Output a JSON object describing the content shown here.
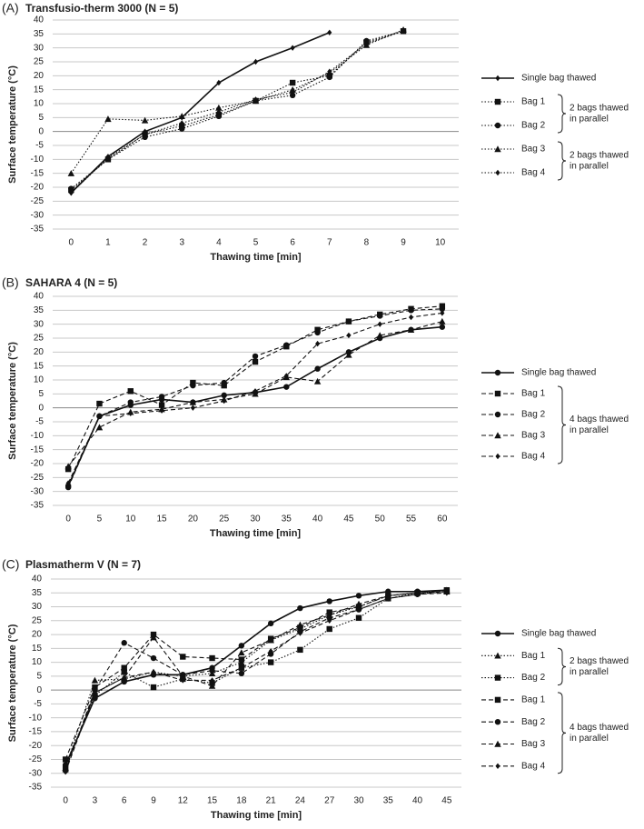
{
  "chart_data": [
    {
      "type": "line",
      "panel_label": "(A)",
      "title": "Transfusio-therm 3000 (N = 5)",
      "x_label": "Thawing time [min]",
      "y_label": "Surface temperature (°C)",
      "categories": [
        "0",
        "1",
        "2",
        "3",
        "4",
        "5",
        "6",
        "7",
        "8",
        "9",
        "10"
      ],
      "ylim": [
        -35,
        40
      ],
      "yticks": [
        -35,
        -30,
        -25,
        -20,
        -15,
        -10,
        -5,
        0,
        5,
        10,
        15,
        20,
        25,
        30,
        35,
        40
      ],
      "grid": true,
      "series": [
        {
          "name": "Single bag thawed",
          "color": "#111111",
          "dash": "solid",
          "marker": "diamond",
          "values": [
            -22,
            -9,
            0,
            5,
            17.5,
            25,
            30,
            35.5,
            null,
            null,
            null
          ]
        },
        {
          "name": "Bag 1",
          "color": "#111111",
          "dash": "dotted",
          "marker": "square",
          "values": [
            -21,
            -10,
            -1,
            2,
            6,
            11,
            17.5,
            20,
            32,
            36,
            null
          ]
        },
        {
          "name": "Bag 2",
          "color": "#111111",
          "dash": "dotted",
          "marker": "circle",
          "values": [
            -20.5,
            -10,
            -2,
            1,
            5.5,
            11,
            13,
            19.5,
            32.5,
            36,
            null
          ]
        },
        {
          "name": "Bag 3",
          "color": "#111111",
          "dash": "dotted",
          "marker": "triangle",
          "values": [
            -15,
            4.5,
            4,
            5.5,
            8.5,
            11,
            15,
            21,
            31,
            36.5,
            null
          ]
        },
        {
          "name": "Bag 4",
          "color": "#111111",
          "dash": "dotted",
          "marker": "diamond",
          "values": [
            -22,
            -9.5,
            -1,
            3,
            7,
            11.5,
            14,
            21.5,
            31.5,
            36,
            null
          ]
        }
      ],
      "legend_groups": [
        {
          "label": [
            "2 bags thawed",
            "in parallel"
          ],
          "series": [
            1,
            2
          ]
        },
        {
          "label": [
            "2 bags thawed",
            "in parallel"
          ],
          "series": [
            3,
            4
          ]
        }
      ]
    },
    {
      "type": "line",
      "panel_label": "(B)",
      "title": "SAHARA 4 (N = 5)",
      "x_label": "Thawing time [min]",
      "y_label": "Surface temperature (°C)",
      "categories": [
        "0",
        "5",
        "10",
        "15",
        "20",
        "25",
        "30",
        "35",
        "40",
        "45",
        "50",
        "55",
        "60"
      ],
      "ylim": [
        -35,
        40
      ],
      "yticks": [
        -35,
        -30,
        -25,
        -20,
        -15,
        -10,
        -5,
        0,
        5,
        10,
        15,
        20,
        25,
        30,
        35,
        40
      ],
      "grid": true,
      "series": [
        {
          "name": "Single bag thawed",
          "color": "#111111",
          "dash": "solid",
          "marker": "circle",
          "values": [
            -28,
            -3,
            1,
            3,
            2,
            4.5,
            5.5,
            7.5,
            14,
            20,
            25,
            28,
            29
          ]
        },
        {
          "name": "Bag 1",
          "color": "#111111",
          "dash": "dashed",
          "marker": "square",
          "values": [
            -22,
            1.5,
            6,
            1,
            9,
            8,
            16.5,
            22,
            28,
            31,
            33.5,
            35.5,
            36.5
          ]
        },
        {
          "name": "Bag 2",
          "color": "#111111",
          "dash": "dashed",
          "marker": "circle",
          "values": [
            -28.5,
            -3,
            2,
            4,
            8,
            9,
            18.5,
            22.5,
            27,
            31,
            33,
            35,
            35.5
          ]
        },
        {
          "name": "Bag 3",
          "color": "#111111",
          "dash": "dashed",
          "marker": "triangle",
          "values": [
            -21,
            -7,
            -1.5,
            -0.5,
            2,
            3,
            5,
            11,
            9.5,
            19,
            26,
            28,
            31
          ]
        },
        {
          "name": "Bag 4",
          "color": "#111111",
          "dash": "dashed",
          "marker": "diamond",
          "values": [
            -27,
            -3,
            -2,
            -1,
            0,
            2.5,
            6,
            11.5,
            23,
            26,
            30,
            32.5,
            34
          ]
        }
      ],
      "legend_groups": [
        {
          "label": [
            "4 bags thawed",
            "in parallel"
          ],
          "series": [
            1,
            2,
            3,
            4
          ]
        }
      ]
    },
    {
      "type": "line",
      "panel_label": "(C)",
      "title": "Plasmatherm V (N = 7)",
      "x_label": "Thawing time [min]",
      "y_label": "Surface temperature (°C)",
      "categories": [
        "0",
        "3",
        "6",
        "9",
        "12",
        "15",
        "18",
        "21",
        "24",
        "27",
        "30",
        "35",
        "40",
        "45"
      ],
      "ylim": [
        -35,
        40
      ],
      "yticks": [
        -35,
        -30,
        -25,
        -20,
        -15,
        -10,
        -5,
        0,
        5,
        10,
        15,
        20,
        25,
        30,
        35,
        40
      ],
      "grid": true,
      "series": [
        {
          "name": "Single bag thawed",
          "color": "#111111",
          "dash": "solid",
          "marker": "circle",
          "values": [
            -27,
            -3,
            3,
            5.5,
            5.5,
            8,
            16,
            24,
            29.5,
            32,
            34,
            35.5,
            35.5,
            36
          ]
        },
        {
          "name": "Bag 1",
          "color": "#111111",
          "dash": "dotted",
          "marker": "triangle",
          "values": [
            -28,
            3.5,
            4,
            6.5,
            5,
            6,
            10,
            18,
            22,
            27,
            30,
            34,
            35,
            36
          ]
        },
        {
          "name": "Bag 2",
          "color": "#111111",
          "dash": "dotted",
          "marker": "square",
          "values": [
            -28,
            -2,
            6.5,
            1,
            4,
            2.5,
            8,
            10,
            14.5,
            22,
            26,
            33,
            35,
            35.5
          ]
        },
        {
          "name": "Bag 1",
          "color": "#111111",
          "dash": "dashed",
          "marker": "square",
          "values": [
            -25,
            1,
            8,
            20,
            12,
            11.5,
            11,
            18.5,
            22.5,
            28,
            30,
            34,
            35,
            36
          ]
        },
        {
          "name": "Bag 2",
          "color": "#111111",
          "dash": "dashed",
          "marker": "circle",
          "values": [
            -29,
            0,
            17,
            11.5,
            5.5,
            7,
            6,
            13,
            21,
            26,
            29,
            33,
            34.5,
            35.5
          ]
        },
        {
          "name": "Bag 3",
          "color": "#111111",
          "dash": "dashed",
          "marker": "triangle",
          "values": [
            -28.5,
            -1,
            4.5,
            19,
            5,
            1.5,
            13.5,
            18,
            23.5,
            27,
            31,
            34,
            35,
            35.5
          ]
        },
        {
          "name": "Bag 4",
          "color": "#111111",
          "dash": "dashed",
          "marker": "diamond",
          "values": [
            -29.5,
            -1,
            4.5,
            6.5,
            3.5,
            3.5,
            8,
            14,
            20.5,
            25,
            29,
            33,
            34.5,
            35
          ]
        }
      ],
      "legend_groups": [
        {
          "label": [
            "2 bags thawed",
            "in parallel"
          ],
          "series": [
            1,
            2
          ]
        },
        {
          "label": [
            "4 bags thawed",
            "in parallel"
          ],
          "series": [
            3,
            4,
            5,
            6
          ]
        }
      ]
    }
  ]
}
